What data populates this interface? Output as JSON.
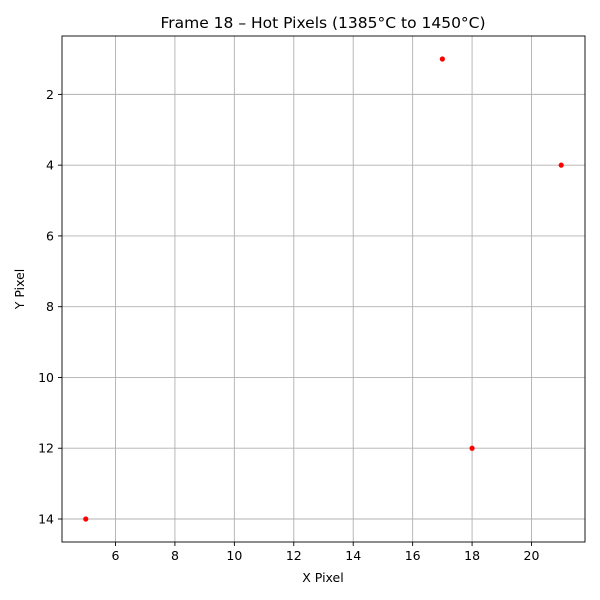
{
  "chart_data": {
    "type": "scatter",
    "title": "Frame 18 – Hot Pixels (1385°C to 1450°C)",
    "xlabel": "X Pixel",
    "ylabel": "Y Pixel",
    "xlim": [
      4.2,
      21.8
    ],
    "ylim": [
      14.65,
      0.35
    ],
    "y_inverted": true,
    "grid": true,
    "x_ticks": [
      6,
      8,
      10,
      12,
      14,
      16,
      18,
      20
    ],
    "y_ticks": [
      2,
      4,
      6,
      8,
      10,
      12,
      14
    ],
    "marker_color": "#ff0000",
    "points": [
      {
        "x": 17,
        "y": 1
      },
      {
        "x": 21,
        "y": 4
      },
      {
        "x": 18,
        "y": 12
      },
      {
        "x": 5,
        "y": 14
      }
    ]
  }
}
